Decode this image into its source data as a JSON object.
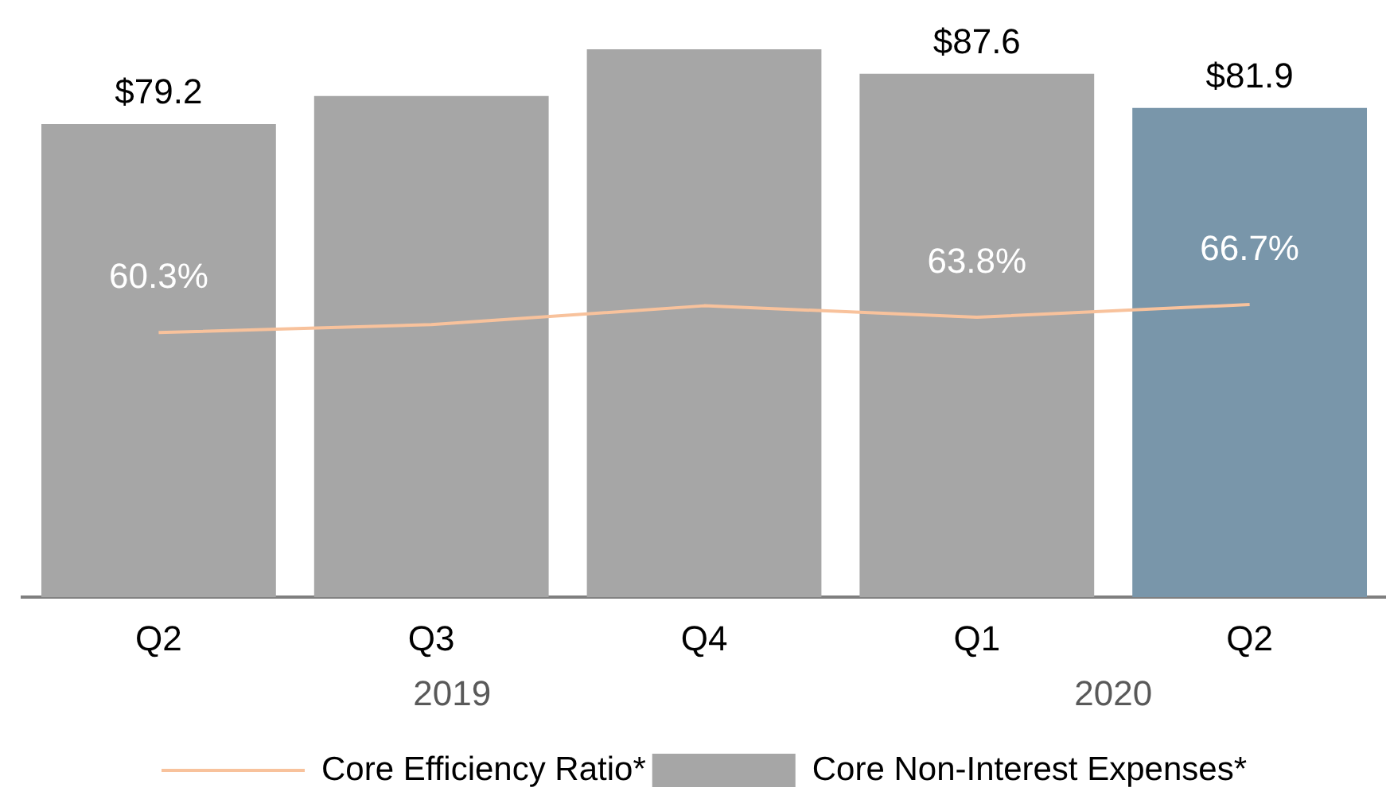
{
  "chart_data": {
    "type": "bar",
    "categories": [
      "Q2",
      "Q3",
      "Q4",
      "Q1",
      "Q2"
    ],
    "series": [
      {
        "name": "Core Non-Interest Expenses*",
        "color": "#a6a6a6",
        "colors": [
          "#a6a6a6",
          "#a6a6a6",
          "#a6a6a6",
          "#a6a6a6",
          "#7996aa"
        ],
        "values": [
          79.2,
          83.9,
          91.7,
          87.6,
          81.9
        ],
        "value_labels": [
          "$79.2",
          null,
          null,
          "$87.6",
          "$81.9"
        ]
      },
      {
        "name": "Core Efficiency Ratio*",
        "type": "line",
        "axis": "y2",
        "color": "#f8c29c",
        "values": [
          60.3,
          62.1,
          66.4,
          63.8,
          66.7
        ],
        "value_labels": [
          "60.3%",
          null,
          null,
          "63.8%",
          "66.7%"
        ]
      }
    ],
    "tick_labels": "x",
    "grid": false,
    "legend": "bottom",
    "marker": "none",
    "annotations": [
      "2019",
      "2020"
    ]
  }
}
